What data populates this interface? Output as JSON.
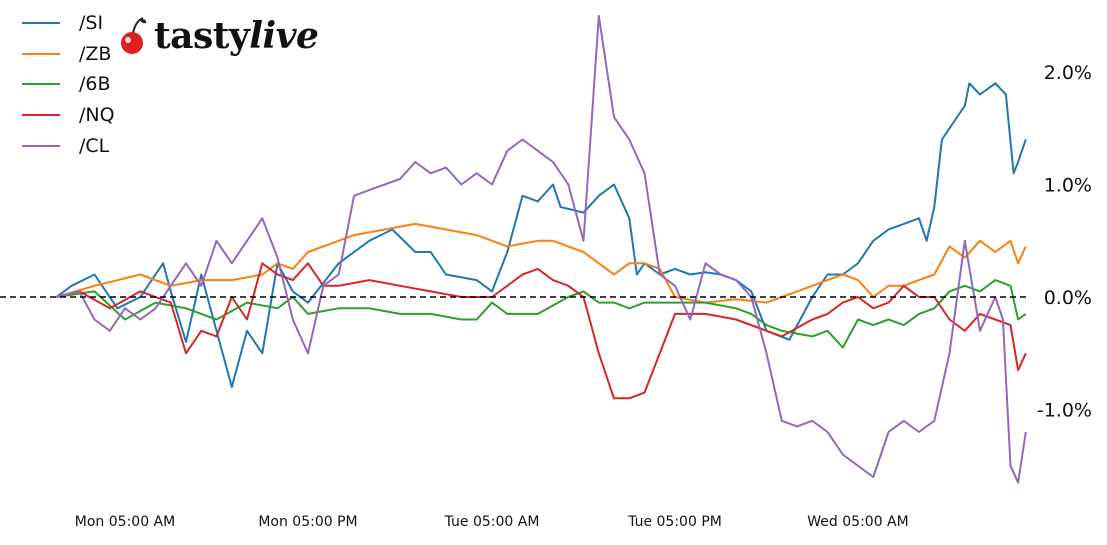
{
  "brand": {
    "name_part1": "tasty",
    "name_part2": "live"
  },
  "colors": {
    "zero_line": "#000000"
  },
  "chart_data": {
    "type": "line",
    "title": "",
    "xlabel": "",
    "ylabel": "",
    "x_tick_labels": [
      "Mon 05:00 AM",
      "Mon 05:00 PM",
      "Tue 05:00 AM",
      "Tue 05:00 PM",
      "Wed 05:00 AM"
    ],
    "x_tick_hours": [
      5,
      17,
      29,
      41,
      53
    ],
    "x_range_hours": [
      0.5,
      61.3
    ],
    "y_tick_labels": [
      "2.0%",
      "1.0%",
      "0.0%",
      "-1.0%"
    ],
    "y_tick_values": [
      2.0,
      1.0,
      0.0,
      -1.0
    ],
    "ylim": [
      -1.7,
      2.5
    ],
    "reference_line": {
      "y": 0.0,
      "style": "dashed"
    },
    "legend_position": "top-left",
    "grid": false,
    "series": [
      {
        "name": "/SI",
        "color": "#1f77b4",
        "points": [
          [
            0.5,
            0
          ],
          [
            1.5,
            0.1
          ],
          [
            3,
            0.2
          ],
          [
            4.5,
            -0.1
          ],
          [
            6,
            0
          ],
          [
            7.5,
            0.3
          ],
          [
            8,
            0.05
          ],
          [
            9,
            -0.4
          ],
          [
            10,
            0.2
          ],
          [
            11,
            -0.3
          ],
          [
            12,
            -0.8
          ],
          [
            13,
            -0.3
          ],
          [
            14,
            -0.5
          ],
          [
            15,
            0.3
          ],
          [
            16,
            0.05
          ],
          [
            17,
            -0.05
          ],
          [
            19,
            0.3
          ],
          [
            21,
            0.5
          ],
          [
            22.5,
            0.6
          ],
          [
            24,
            0.4
          ],
          [
            25,
            0.4
          ],
          [
            26,
            0.2
          ],
          [
            28,
            0.15
          ],
          [
            29,
            0.05
          ],
          [
            30,
            0.4
          ],
          [
            31,
            0.9
          ],
          [
            32,
            0.85
          ],
          [
            33,
            1.0
          ],
          [
            33.5,
            0.8
          ],
          [
            35,
            0.75
          ],
          [
            36,
            0.9
          ],
          [
            37,
            1.0
          ],
          [
            38,
            0.7
          ],
          [
            38.5,
            0.2
          ],
          [
            39,
            0.3
          ],
          [
            40,
            0.2
          ],
          [
            41,
            0.25
          ],
          [
            42,
            0.2
          ],
          [
            43,
            0.22
          ],
          [
            44,
            0.2
          ],
          [
            45,
            0.15
          ],
          [
            46,
            0.05
          ],
          [
            47,
            -0.3
          ],
          [
            48.5,
            -0.38
          ],
          [
            50,
            0
          ],
          [
            51,
            0.2
          ],
          [
            52,
            0.2
          ],
          [
            53,
            0.3
          ],
          [
            54,
            0.5
          ],
          [
            55,
            0.6
          ],
          [
            56,
            0.65
          ],
          [
            57,
            0.7
          ],
          [
            57.5,
            0.5
          ],
          [
            58,
            0.8
          ],
          [
            58.5,
            1.4
          ],
          [
            59,
            1.5
          ],
          [
            59.5,
            1.6
          ],
          [
            60,
            1.7
          ],
          [
            60.3,
            1.9
          ],
          [
            61,
            1.8
          ],
          [
            61.5,
            1.85
          ],
          [
            62,
            1.9
          ],
          [
            62.7,
            1.8
          ],
          [
            63.2,
            1.1
          ],
          [
            63.5,
            1.2
          ],
          [
            64,
            1.4
          ]
        ]
      },
      {
        "name": "/ZB",
        "color": "#ff7f0e",
        "points": [
          [
            0.5,
            0
          ],
          [
            3,
            0.1
          ],
          [
            6,
            0.2
          ],
          [
            8,
            0.1
          ],
          [
            10,
            0.15
          ],
          [
            12,
            0.15
          ],
          [
            14,
            0.2
          ],
          [
            15,
            0.3
          ],
          [
            16,
            0.25
          ],
          [
            17,
            0.4
          ],
          [
            19,
            0.5
          ],
          [
            20,
            0.55
          ],
          [
            22,
            0.6
          ],
          [
            24,
            0.65
          ],
          [
            26,
            0.6
          ],
          [
            28,
            0.55
          ],
          [
            30,
            0.45
          ],
          [
            32,
            0.5
          ],
          [
            33,
            0.5
          ],
          [
            34,
            0.45
          ],
          [
            35,
            0.4
          ],
          [
            36,
            0.3
          ],
          [
            37,
            0.2
          ],
          [
            38,
            0.3
          ],
          [
            39,
            0.3
          ],
          [
            40,
            0.25
          ],
          [
            41,
            0
          ],
          [
            43,
            -0.05
          ],
          [
            45,
            -0.02
          ],
          [
            47,
            -0.05
          ],
          [
            48,
            0
          ],
          [
            49,
            0.05
          ],
          [
            50,
            0.1
          ],
          [
            51,
            0.15
          ],
          [
            52,
            0.2
          ],
          [
            53,
            0.15
          ],
          [
            54,
            0
          ],
          [
            55,
            0.1
          ],
          [
            56,
            0.1
          ],
          [
            57,
            0.15
          ],
          [
            58,
            0.2
          ],
          [
            59,
            0.45
          ],
          [
            60,
            0.35
          ],
          [
            61,
            0.5
          ],
          [
            62,
            0.4
          ],
          [
            63,
            0.5
          ],
          [
            63.5,
            0.3
          ],
          [
            64,
            0.45
          ]
        ]
      },
      {
        "name": "/6B",
        "color": "#2ca02c",
        "points": [
          [
            0.5,
            0
          ],
          [
            3,
            0.05
          ],
          [
            5,
            -0.2
          ],
          [
            7,
            -0.05
          ],
          [
            9,
            -0.1
          ],
          [
            11,
            -0.2
          ],
          [
            13,
            -0.05
          ],
          [
            15,
            -0.1
          ],
          [
            16,
            0
          ],
          [
            17,
            -0.15
          ],
          [
            19,
            -0.1
          ],
          [
            21,
            -0.1
          ],
          [
            23,
            -0.15
          ],
          [
            25,
            -0.15
          ],
          [
            27,
            -0.2
          ],
          [
            28,
            -0.2
          ],
          [
            29,
            -0.05
          ],
          [
            30,
            -0.15
          ],
          [
            32,
            -0.15
          ],
          [
            34,
            0
          ],
          [
            35,
            0.05
          ],
          [
            36,
            -0.05
          ],
          [
            37,
            -0.05
          ],
          [
            38,
            -0.1
          ],
          [
            39,
            -0.05
          ],
          [
            41,
            -0.05
          ],
          [
            43,
            -0.05
          ],
          [
            45,
            -0.1
          ],
          [
            46,
            -0.15
          ],
          [
            47,
            -0.25
          ],
          [
            48,
            -0.3
          ],
          [
            50,
            -0.35
          ],
          [
            51,
            -0.3
          ],
          [
            52,
            -0.45
          ],
          [
            53,
            -0.2
          ],
          [
            54,
            -0.25
          ],
          [
            55,
            -0.2
          ],
          [
            56,
            -0.25
          ],
          [
            57,
            -0.15
          ],
          [
            58,
            -0.1
          ],
          [
            59,
            0.05
          ],
          [
            60,
            0.1
          ],
          [
            61,
            0.05
          ],
          [
            62,
            0.15
          ],
          [
            63,
            0.1
          ],
          [
            63.5,
            -0.2
          ],
          [
            64,
            -0.15
          ]
        ]
      },
      {
        "name": "/NQ",
        "color": "#d62728",
        "points": [
          [
            0.5,
            0
          ],
          [
            2,
            0.05
          ],
          [
            4,
            -0.1
          ],
          [
            6,
            0.05
          ],
          [
            8,
            -0.05
          ],
          [
            9,
            -0.5
          ],
          [
            10,
            -0.3
          ],
          [
            11,
            -0.35
          ],
          [
            12,
            0
          ],
          [
            13,
            -0.2
          ],
          [
            14,
            0.3
          ],
          [
            15,
            0.2
          ],
          [
            16,
            0.15
          ],
          [
            17,
            0.3
          ],
          [
            18,
            0.1
          ],
          [
            19,
            0.1
          ],
          [
            21,
            0.15
          ],
          [
            23,
            0.1
          ],
          [
            25,
            0.05
          ],
          [
            27,
            0
          ],
          [
            29,
            0
          ],
          [
            30,
            0.1
          ],
          [
            31,
            0.2
          ],
          [
            32,
            0.25
          ],
          [
            33,
            0.15
          ],
          [
            34,
            0.1
          ],
          [
            35,
            0
          ],
          [
            36,
            -0.5
          ],
          [
            37,
            -0.9
          ],
          [
            38,
            -0.9
          ],
          [
            39,
            -0.85
          ],
          [
            40,
            -0.5
          ],
          [
            41,
            -0.15
          ],
          [
            43,
            -0.15
          ],
          [
            45,
            -0.2
          ],
          [
            47,
            -0.3
          ],
          [
            48,
            -0.35
          ],
          [
            50,
            -0.2
          ],
          [
            51,
            -0.15
          ],
          [
            52,
            -0.05
          ],
          [
            53,
            0
          ],
          [
            54,
            -0.1
          ],
          [
            55,
            -0.05
          ],
          [
            56,
            0.1
          ],
          [
            57,
            0
          ],
          [
            58,
            0
          ],
          [
            59,
            -0.2
          ],
          [
            60,
            -0.3
          ],
          [
            61,
            -0.15
          ],
          [
            62,
            -0.2
          ],
          [
            63,
            -0.25
          ],
          [
            63.5,
            -0.65
          ],
          [
            64,
            -0.5
          ]
        ]
      },
      {
        "name": "/CL",
        "color": "#9467bd",
        "points": [
          [
            0.5,
            0
          ],
          [
            2,
            0.05
          ],
          [
            3,
            -0.2
          ],
          [
            4,
            -0.3
          ],
          [
            5,
            -0.1
          ],
          [
            6,
            -0.2
          ],
          [
            7,
            -0.1
          ],
          [
            8,
            0.1
          ],
          [
            9,
            0.3
          ],
          [
            10,
            0.1
          ],
          [
            11,
            0.5
          ],
          [
            12,
            0.3
          ],
          [
            13,
            0.5
          ],
          [
            14,
            0.7
          ],
          [
            15,
            0.35
          ],
          [
            16,
            -0.2
          ],
          [
            17,
            -0.5
          ],
          [
            18,
            0.1
          ],
          [
            19,
            0.2
          ],
          [
            20,
            0.9
          ],
          [
            21,
            0.95
          ],
          [
            22,
            1.0
          ],
          [
            23,
            1.05
          ],
          [
            24,
            1.2
          ],
          [
            25,
            1.1
          ],
          [
            26,
            1.15
          ],
          [
            27,
            1.0
          ],
          [
            28,
            1.1
          ],
          [
            29,
            1.0
          ],
          [
            30,
            1.3
          ],
          [
            31,
            1.4
          ],
          [
            32,
            1.3
          ],
          [
            33,
            1.2
          ],
          [
            34,
            1.0
          ],
          [
            35,
            0.5
          ],
          [
            36,
            2.5
          ],
          [
            37,
            1.6
          ],
          [
            38,
            1.4
          ],
          [
            39,
            1.1
          ],
          [
            40,
            0.2
          ],
          [
            41,
            0.1
          ],
          [
            42,
            -0.2
          ],
          [
            43,
            0.3
          ],
          [
            44,
            0.2
          ],
          [
            45,
            0.15
          ],
          [
            46,
            0
          ],
          [
            47,
            -0.5
          ],
          [
            48,
            -1.1
          ],
          [
            49,
            -1.15
          ],
          [
            50,
            -1.1
          ],
          [
            51,
            -1.2
          ],
          [
            52,
            -1.4
          ],
          [
            53,
            -1.5
          ],
          [
            54,
            -1.6
          ],
          [
            55,
            -1.2
          ],
          [
            56,
            -1.1
          ],
          [
            57,
            -1.2
          ],
          [
            58,
            -1.1
          ],
          [
            59,
            -0.5
          ],
          [
            60,
            0.5
          ],
          [
            61,
            -0.3
          ],
          [
            62,
            0
          ],
          [
            62.5,
            -0.2
          ],
          [
            63,
            -1.5
          ],
          [
            63.5,
            -1.65
          ],
          [
            64,
            -1.2
          ]
        ]
      }
    ]
  }
}
